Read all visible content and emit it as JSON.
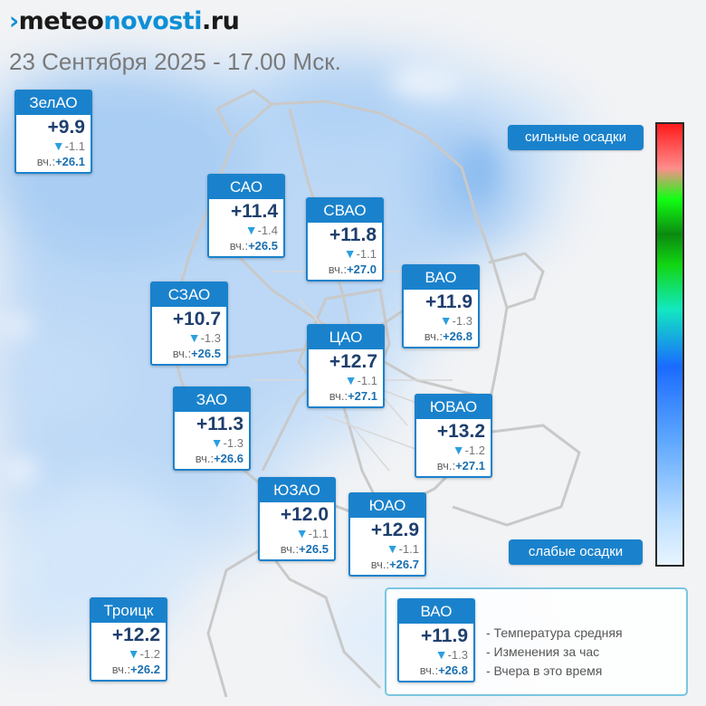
{
  "brand": {
    "mark": "›",
    "part1": "meteo",
    "part2": "novosti",
    "part3": ".ru"
  },
  "date_line": "23 Сентября 2025 - 17.00 Мск.",
  "yesterday_prefix": "вч.:",
  "districts": [
    {
      "name": "ЗелАО",
      "temp": "+9.9",
      "change": "-1.1",
      "yesterday": "+26.1"
    },
    {
      "name": "САО",
      "temp": "+11.4",
      "change": "-1.4",
      "yesterday": "+26.5"
    },
    {
      "name": "СВАО",
      "temp": "+11.8",
      "change": "-1.1",
      "yesterday": "+27.0"
    },
    {
      "name": "ВАО",
      "temp": "+11.9",
      "change": "-1.3",
      "yesterday": "+26.8"
    },
    {
      "name": "СЗАО",
      "temp": "+10.7",
      "change": "-1.3",
      "yesterday": "+26.5"
    },
    {
      "name": "ЦАО",
      "temp": "+12.7",
      "change": "-1.1",
      "yesterday": "+27.1"
    },
    {
      "name": "ЗАО",
      "temp": "+11.3",
      "change": "-1.3",
      "yesterday": "+26.6"
    },
    {
      "name": "ЮВАО",
      "temp": "+13.2",
      "change": "-1.2",
      "yesterday": "+27.1"
    },
    {
      "name": "ЮЗАО",
      "temp": "+12.0",
      "change": "-1.1",
      "yesterday": "+26.5"
    },
    {
      "name": "ЮАО",
      "temp": "+12.9",
      "change": "-1.1",
      "yesterday": "+26.7"
    },
    {
      "name": "Троицк",
      "temp": "+12.2",
      "change": "-1.2",
      "yesterday": "+26.2"
    }
  ],
  "scale": {
    "top_label": "сильные осадки",
    "bottom_label": "слабые осадки"
  },
  "legend": {
    "example": {
      "name": "ВАО",
      "temp": "+11.9",
      "change": "-1.3",
      "yesterday": "+26.8"
    },
    "items": [
      "- Температура средняя",
      "- Изменения за час",
      "- Вчера в это время"
    ]
  },
  "colors": {
    "accent": "#1a82cc",
    "brand_blue": "#0e8fd6",
    "change_arrow": "#2b9fe0"
  },
  "icons": {
    "change": "down-triangle-icon"
  }
}
